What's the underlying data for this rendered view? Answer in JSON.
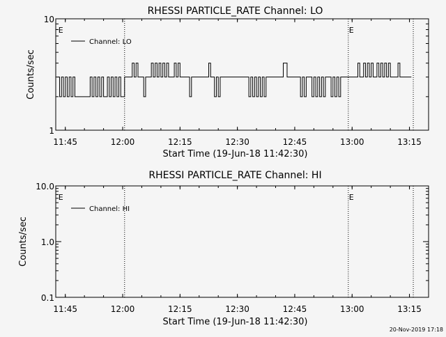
{
  "footer": {
    "timestamp": "20-Nov-2019 17:18"
  },
  "chart_data": [
    {
      "type": "line",
      "title": "RHESSI PARTICLE_RATE Channel: LO",
      "xlabel": "Start Time (19-Jun-18 11:42:30)",
      "ylabel": "Counts/sec",
      "yscale": "log",
      "xlim": [
        "11:42:30",
        "13:20:00"
      ],
      "ylim": [
        1,
        10
      ],
      "x_ticks": [
        "11:45",
        "12:00",
        "12:15",
        "12:30",
        "12:45",
        "13:00",
        "13:15"
      ],
      "y_ticks": [
        "1",
        "10"
      ],
      "grid": false,
      "legend": "top-left",
      "markers": [
        {
          "label": "E",
          "time": "11:43:00"
        },
        {
          "label": "E",
          "time": "12:59:00"
        }
      ],
      "vlines": [
        "12:00:30",
        "12:59:00",
        "13:16:00"
      ],
      "series": [
        {
          "name": "Channel: LO",
          "x": [
            "11:43:00",
            "11:43:30",
            "11:44:00",
            "11:44:30",
            "11:45:00",
            "11:45:30",
            "11:46:00",
            "11:46:30",
            "11:47:00",
            "11:47:30",
            "11:48:00",
            "11:48:30",
            "11:49:00",
            "11:49:30",
            "11:50:00",
            "11:50:30",
            "11:51:00",
            "11:51:30",
            "11:52:00",
            "11:52:30",
            "11:53:00",
            "11:53:30",
            "11:54:00",
            "11:54:30",
            "11:55:00",
            "11:55:30",
            "11:56:00",
            "11:56:30",
            "11:57:00",
            "11:57:30",
            "11:58:00",
            "11:58:30",
            "11:59:00",
            "11:59:30",
            "12:00:00",
            "12:00:30",
            "12:01:00",
            "12:01:30",
            "12:02:00",
            "12:02:30",
            "12:03:00",
            "12:03:30",
            "12:04:00",
            "12:04:30",
            "12:05:00",
            "12:05:30",
            "12:06:00",
            "12:06:30",
            "12:07:00",
            "12:07:30",
            "12:08:00",
            "12:08:30",
            "12:09:00",
            "12:09:30",
            "12:10:00",
            "12:10:30",
            "12:11:00",
            "12:11:30",
            "12:12:00",
            "12:12:30",
            "12:13:00",
            "12:13:30",
            "12:14:00",
            "12:14:30",
            "12:15:00",
            "12:15:30",
            "12:16:00",
            "12:16:30",
            "12:17:00",
            "12:17:30",
            "12:18:00",
            "12:18:30",
            "12:19:00",
            "12:19:30",
            "12:20:00",
            "12:20:30",
            "12:21:00",
            "12:21:30",
            "12:22:00",
            "12:22:30",
            "12:23:00",
            "12:23:30",
            "12:24:00",
            "12:24:30",
            "12:25:00",
            "12:25:30",
            "12:26:00",
            "12:26:30",
            "12:27:00",
            "12:27:30",
            "12:28:00",
            "12:28:30",
            "12:29:00",
            "12:29:30",
            "12:30:00",
            "12:30:30",
            "12:31:00",
            "12:31:30",
            "12:32:00",
            "12:32:30",
            "12:33:00",
            "12:33:30",
            "12:34:00",
            "12:34:30",
            "12:35:00",
            "12:35:30",
            "12:36:00",
            "12:36:30",
            "12:37:00",
            "12:37:30",
            "12:38:00",
            "12:38:30",
            "12:39:00",
            "12:39:30",
            "12:40:00",
            "12:40:30",
            "12:41:00",
            "12:41:30",
            "12:42:00",
            "12:42:30",
            "12:43:00",
            "12:43:30",
            "12:44:00",
            "12:44:30",
            "12:45:00",
            "12:45:30",
            "12:46:00",
            "12:46:30",
            "12:47:00",
            "12:47:30",
            "12:48:00",
            "12:48:30",
            "12:49:00",
            "12:49:30",
            "12:50:00",
            "12:50:30",
            "12:51:00",
            "12:51:30",
            "12:52:00",
            "12:52:30",
            "12:53:00",
            "12:53:30",
            "12:54:00",
            "12:54:30",
            "12:55:00",
            "12:55:30",
            "12:56:00",
            "12:56:30",
            "12:57:00",
            "12:57:30",
            "12:58:00",
            "12:58:30",
            "12:59:00",
            "12:59:30",
            "13:00:00",
            "13:00:30",
            "13:01:00",
            "13:01:30",
            "13:02:00",
            "13:02:30",
            "13:03:00",
            "13:03:30",
            "13:04:00",
            "13:04:30",
            "13:05:00",
            "13:05:30",
            "13:06:00",
            "13:06:30",
            "13:07:00",
            "13:07:30",
            "13:08:00",
            "13:08:30",
            "13:09:00",
            "13:09:30",
            "13:10:00",
            "13:10:30",
            "13:11:00",
            "13:11:30",
            "13:12:00",
            "13:12:30",
            "13:13:00",
            "13:13:30",
            "13:14:00",
            "13:14:30",
            "13:15:00",
            "13:15:30"
          ],
          "y": [
            3,
            2,
            3,
            2,
            3,
            2,
            3,
            2,
            3,
            2,
            2,
            2,
            2,
            2,
            2,
            2,
            2,
            3,
            2,
            3,
            2,
            3,
            2,
            3,
            2,
            2,
            3,
            2,
            3,
            2,
            3,
            2,
            3,
            2,
            2,
            3,
            3,
            3,
            3,
            4,
            3,
            4,
            3,
            3,
            3,
            2,
            3,
            3,
            3,
            4,
            3,
            4,
            3,
            4,
            3,
            4,
            3,
            4,
            3,
            3,
            3,
            4,
            3,
            4,
            3,
            3,
            3,
            3,
            3,
            2,
            3,
            3,
            3,
            3,
            3,
            3,
            3,
            3,
            3,
            4,
            3,
            3,
            2,
            3,
            2,
            3,
            3,
            3,
            3,
            3,
            3,
            3,
            3,
            3,
            3,
            3,
            3,
            3,
            3,
            3,
            2,
            3,
            2,
            3,
            2,
            3,
            2,
            3,
            2,
            3,
            3,
            3,
            3,
            3,
            3,
            3,
            3,
            3,
            4,
            4,
            3,
            3,
            3,
            3,
            3,
            3,
            3,
            2,
            3,
            2,
            3,
            3,
            3,
            2,
            3,
            2,
            3,
            2,
            3,
            2,
            3,
            3,
            3,
            2,
            3,
            2,
            3,
            2,
            3,
            3,
            3,
            3,
            3,
            3,
            3,
            3,
            3,
            4,
            3,
            3,
            4,
            3,
            4,
            3,
            4,
            3,
            3,
            4,
            3,
            4,
            3,
            4,
            3,
            4,
            3,
            3,
            3,
            3,
            4,
            3,
            3,
            3,
            3,
            3,
            3,
            3
          ]
        }
      ]
    },
    {
      "type": "line",
      "title": "RHESSI PARTICLE_RATE Channel: HI",
      "xlabel": "Start Time (19-Jun-18 11:42:30)",
      "ylabel": "Counts/sec",
      "yscale": "log",
      "xlim": [
        "11:42:30",
        "13:20:00"
      ],
      "ylim": [
        0.1,
        10
      ],
      "x_ticks": [
        "11:45",
        "12:00",
        "12:15",
        "12:30",
        "12:45",
        "13:00",
        "13:15"
      ],
      "y_ticks": [
        "0.1",
        "1.0",
        "10.0"
      ],
      "grid": false,
      "legend": "top-left",
      "markers": [
        {
          "label": "E",
          "time": "11:43:00"
        },
        {
          "label": "E",
          "time": "12:59:00"
        }
      ],
      "vlines": [
        "12:00:30",
        "12:59:00",
        "13:16:00"
      ],
      "series": [
        {
          "name": "Channel: HI",
          "x": [],
          "y": []
        }
      ]
    }
  ]
}
